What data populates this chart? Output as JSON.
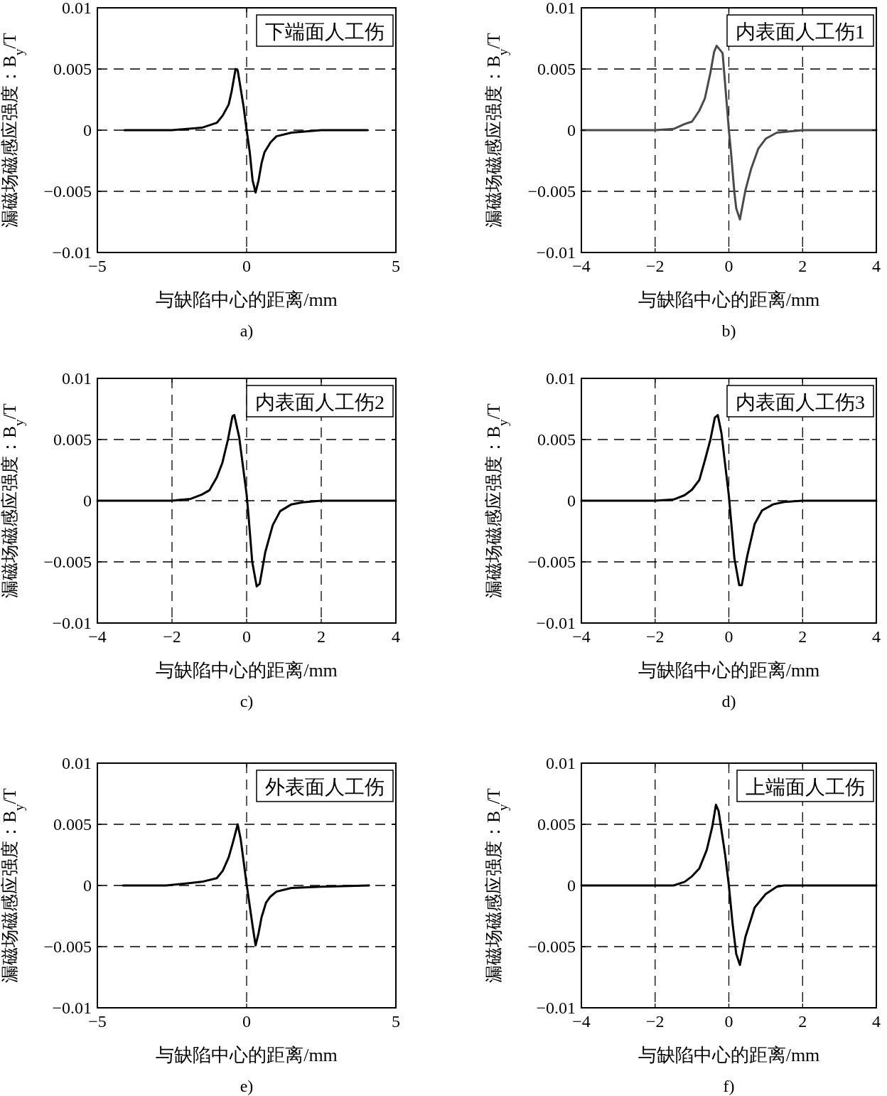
{
  "chart_data": [
    {
      "type": "line",
      "xlabel": "与缺陷中心的距离/mm",
      "ylabel": "漏磁场磁感应强度：B$_{y}$/T",
      "xlim": [
        -5,
        5
      ],
      "ylim": [
        -0.01,
        0.01
      ],
      "xticks": [
        -5,
        0,
        5
      ],
      "yticks": [
        -0.01,
        -0.005,
        0,
        0.005,
        0.01
      ],
      "grid": true,
      "annotations": [
        "下端面人工伤",
        "a)"
      ],
      "series": [
        {
          "color": "#000000",
          "x": [
            -4.09,
            -2.5,
            -1.5,
            -1.0,
            -0.8,
            -0.6,
            -0.5,
            -0.37,
            -0.3,
            -0.1,
            0.0,
            0.1,
            0.2,
            0.3,
            0.4,
            0.5,
            0.6,
            0.8,
            1.0,
            1.5,
            2.5,
            4.05
          ],
          "values": [
            0,
            0,
            0.0002,
            0.0006,
            0.0012,
            0.0021,
            0.0032,
            0.005,
            0.0049,
            0.0019,
            0,
            -0.0017,
            -0.0041,
            -0.0051,
            -0.0041,
            -0.0027,
            -0.0018,
            -0.001,
            -0.0005,
            -0.0002,
            0,
            0
          ]
        }
      ]
    },
    {
      "type": "line",
      "xlabel": "与缺陷中心的距离/mm",
      "ylabel": "漏磁场磁感应强度：B$_{y}$/T",
      "xlim": [
        -4,
        4
      ],
      "ylim": [
        -0.01,
        0.01
      ],
      "xticks": [
        -4,
        -2,
        0,
        2,
        4
      ],
      "yticks": [
        -0.01,
        -0.005,
        0,
        0.005,
        0.01
      ],
      "grid": true,
      "annotations": [
        "内表面人工伤1",
        "b)"
      ],
      "series": [
        {
          "color": "#4a4a4a",
          "x": [
            -4,
            -2.0,
            -1.5,
            -1.2,
            -1.0,
            -0.8,
            -0.65,
            -0.5,
            -0.4,
            -0.33,
            -0.17,
            -0.05,
            0.0,
            0.05,
            0.15,
            0.2,
            0.3,
            0.45,
            0.6,
            0.8,
            1.0,
            1.3,
            2.0,
            4.0
          ],
          "values": [
            0,
            0,
            0.0001,
            0.0005,
            0.0007,
            0.0016,
            0.0026,
            0.0047,
            0.0064,
            0.0069,
            0.0063,
            0.0019,
            0,
            -0.0015,
            -0.0051,
            -0.0064,
            -0.0073,
            -0.0049,
            -0.0032,
            -0.0015,
            -0.0007,
            -0.0002,
            0,
            0
          ]
        }
      ]
    },
    {
      "type": "line",
      "xlabel": "与缺陷中心的距离/mm",
      "ylabel": "漏磁场磁感应强度：B$_{y}$/T",
      "xlim": [
        -4,
        4
      ],
      "ylim": [
        -0.01,
        0.01
      ],
      "xticks": [
        -4,
        -2,
        0,
        2,
        4
      ],
      "yticks": [
        -0.01,
        -0.005,
        0,
        0.005,
        0.01
      ],
      "grid": true,
      "annotations": [
        "内表面人工伤2",
        "c)"
      ],
      "series": [
        {
          "color": "#000000",
          "x": [
            -4,
            -2.0,
            -1.5,
            -1.2,
            -1.0,
            -0.8,
            -0.65,
            -0.5,
            -0.38,
            -0.33,
            -0.2,
            0.0,
            0.05,
            0.15,
            0.27,
            0.35,
            0.5,
            0.7,
            0.9,
            1.2,
            1.5,
            2.0,
            4.0
          ],
          "values": [
            0,
            0,
            0.00015,
            0.0005,
            0.00085,
            0.0019,
            0.0031,
            0.005,
            0.0069,
            0.007,
            0.0052,
            0.0005,
            -0.0012,
            -0.005,
            -0.007,
            -0.0068,
            -0.0042,
            -0.002,
            -0.00085,
            -0.0003,
            -0.00013,
            0,
            0
          ]
        }
      ]
    },
    {
      "type": "line",
      "xlabel": "与缺陷中心的距离/mm",
      "ylabel": "漏磁场磁感应强度：B$_{y}$/T",
      "xlim": [
        -4,
        4
      ],
      "ylim": [
        -0.01,
        0.01
      ],
      "xticks": [
        -4,
        -2,
        0,
        2,
        4
      ],
      "yticks": [
        -0.01,
        -0.005,
        0,
        0.005,
        0.01
      ],
      "grid": true,
      "annotations": [
        "内表面人工伤3",
        "d)"
      ],
      "series": [
        {
          "color": "#000000",
          "x": [
            -4,
            -2.0,
            -1.5,
            -1.2,
            -1.0,
            -0.8,
            -0.65,
            -0.5,
            -0.38,
            -0.3,
            -0.2,
            0.0,
            0.05,
            0.15,
            0.28,
            0.35,
            0.5,
            0.7,
            0.9,
            1.2,
            1.5,
            2.0,
            4.0
          ],
          "values": [
            0,
            0,
            0.0001,
            0.00045,
            0.0009,
            0.0017,
            0.0033,
            0.005,
            0.0068,
            0.007,
            0.0055,
            0.0004,
            -0.0013,
            -0.0047,
            -0.0069,
            -0.0069,
            -0.0045,
            -0.0019,
            -0.0008,
            -0.0003,
            -0.0001,
            0,
            0
          ]
        }
      ]
    },
    {
      "type": "line",
      "xlabel": "与缺陷中心的距离/mm",
      "ylabel": "漏磁场磁感应强度：B$_{y}$/T",
      "xlim": [
        -5,
        5
      ],
      "ylim": [
        -0.01,
        0.01
      ],
      "xticks": [
        -5,
        0,
        5
      ],
      "yticks": [
        -0.01,
        -0.005,
        0,
        0.005,
        0.01
      ],
      "grid": true,
      "annotations": [
        "外表面人工伤",
        "e)"
      ],
      "series": [
        {
          "color": "#000000",
          "x": [
            -4.14,
            -2.7,
            -1.5,
            -1.0,
            -0.8,
            -0.6,
            -0.45,
            -0.3,
            -0.2,
            0.0,
            0.1,
            0.2,
            0.3,
            0.4,
            0.5,
            0.65,
            0.8,
            1.0,
            1.5,
            2.5,
            4.1
          ],
          "values": [
            0,
            0,
            0.0003,
            0.0006,
            0.0012,
            0.0023,
            0.0036,
            0.005,
            0.0038,
            0.0001,
            -0.0016,
            -0.0033,
            -0.0049,
            -0.0039,
            -0.0026,
            -0.0014,
            -0.0009,
            -0.0005,
            -0.0002,
            -0.0001,
            0
          ]
        }
      ]
    },
    {
      "type": "line",
      "xlabel": "与缺陷中心的距离/mm",
      "ylabel": "漏磁场磁感应强度：B$_{y}$/T",
      "xlim": [
        -4,
        4
      ],
      "ylim": [
        -0.01,
        0.01
      ],
      "xticks": [
        -4,
        -2,
        0,
        2,
        4
      ],
      "yticks": [
        -0.01,
        -0.005,
        0,
        0.005,
        0.01
      ],
      "grid": true,
      "annotations": [
        "上端面人工伤",
        "f)"
      ],
      "series": [
        {
          "color": "#000000",
          "x": [
            -4,
            -1.5,
            -1.2,
            -1.0,
            -0.8,
            -0.6,
            -0.45,
            -0.35,
            -0.28,
            -0.1,
            0.0,
            0.1,
            0.2,
            0.3,
            0.45,
            0.7,
            1.0,
            1.3,
            1.5,
            4.0
          ],
          "values": [
            0,
            0,
            0.0003,
            0.00075,
            0.0014,
            0.0029,
            0.0048,
            0.0066,
            0.0061,
            0.0025,
            0,
            -0.0031,
            -0.0056,
            -0.0065,
            -0.0042,
            -0.0018,
            -0.0007,
            -0.0001,
            0,
            0
          ]
        }
      ]
    }
  ]
}
